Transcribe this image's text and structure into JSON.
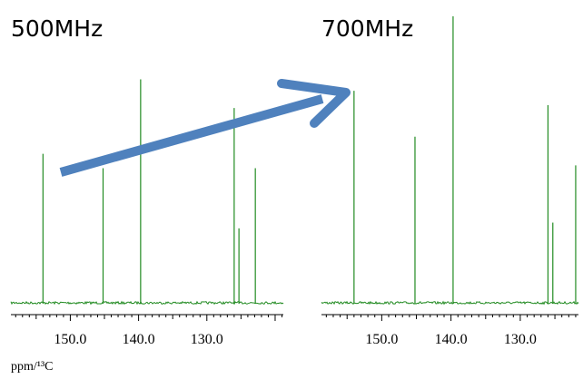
{
  "chart_data": [
    {
      "type": "line",
      "title": "500MHz",
      "xlabel": "ppm/¹³C",
      "x_axis": {
        "reversed": true,
        "range": [
          158.7,
          118.8
        ],
        "tick_labels": [
          "150.0",
          "140.0",
          "130.0"
        ],
        "tick_values": [
          150.0,
          140.0,
          130.0
        ],
        "minor_tick_step": 1.0
      },
      "y_axis": {
        "range": [
          0,
          1
        ],
        "visible": false
      },
      "color": "#228b22",
      "series": [
        {
          "peaks": [
            {
              "ppm": 154.0,
              "height": 0.52
            },
            {
              "ppm": 145.2,
              "height": 0.47
            },
            {
              "ppm": 139.7,
              "height": 0.78
            },
            {
              "ppm": 126.0,
              "height": 0.68
            },
            {
              "ppm": 125.3,
              "height": 0.26
            },
            {
              "ppm": 122.9,
              "height": 0.47
            }
          ]
        }
      ]
    },
    {
      "type": "line",
      "title": "700MHz",
      "xlabel": "",
      "x_axis": {
        "reversed": true,
        "range": [
          158.7,
          121.6
        ],
        "tick_labels": [
          "150.0",
          "140.0",
          "130.0"
        ],
        "tick_values": [
          150.0,
          140.0,
          130.0
        ],
        "minor_tick_step": 1.0
      },
      "y_axis": {
        "range": [
          0,
          1
        ],
        "visible": false
      },
      "color": "#228b22",
      "series": [
        {
          "peaks": [
            {
              "ppm": 154.0,
              "height": 0.74
            },
            {
              "ppm": 145.2,
              "height": 0.58
            },
            {
              "ppm": 139.7,
              "height": 1.0
            },
            {
              "ppm": 126.0,
              "height": 0.69
            },
            {
              "ppm": 125.3,
              "height": 0.28
            },
            {
              "ppm": 122.0,
              "height": 0.48
            }
          ]
        }
      ]
    }
  ],
  "annotation": {
    "kind": "arrow",
    "from_chart": 0,
    "to_chart": 1,
    "color": "#4f81bd"
  }
}
